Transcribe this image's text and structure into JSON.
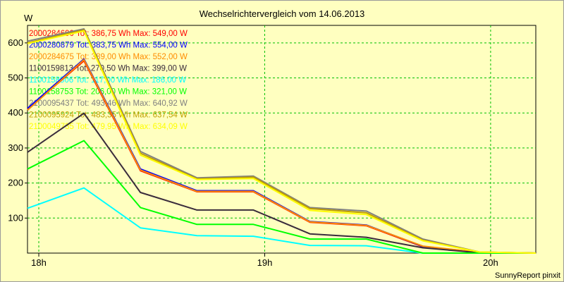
{
  "chart_data": {
    "type": "line",
    "title": "Wechselrichtervergleich vom 14.06.2013",
    "ylabel": "W",
    "xlabel": "",
    "x_ticks": [
      {
        "label": "18h",
        "t": 18.0
      },
      {
        "label": "19h",
        "t": 19.0
      },
      {
        "label": "20h",
        "t": 20.0
      }
    ],
    "xlim": [
      17.95,
      20.2
    ],
    "ylim": [
      0,
      650
    ],
    "y_ticks": [
      100,
      200,
      300,
      400,
      500,
      600
    ],
    "grid": true,
    "legend_position": "top-left",
    "x": [
      17.95,
      18.2,
      18.45,
      18.7,
      18.95,
      19.2,
      19.45,
      19.7,
      19.95,
      20.2
    ],
    "series": [
      {
        "name": "2000284690",
        "legend": "2000284690 Tot: 386,75 Wh Max: 549,00 W",
        "color": "#ff0000",
        "values": [
          410,
          549,
          235,
          175,
          175,
          88,
          78,
          18,
          2,
          0
        ]
      },
      {
        "name": "2000280879",
        "legend": "2000280879 Tot: 383,75 Wh Max: 554,00 W",
        "color": "#0000ff",
        "values": [
          413,
          554,
          240,
          178,
          178,
          90,
          80,
          19,
          2,
          0
        ]
      },
      {
        "name": "2000284675",
        "legend": "2000284675 Tot: 389,00 Wh Max: 552,00 W",
        "color": "#ff8c00",
        "values": [
          408,
          552,
          237,
          176,
          176,
          89,
          79,
          20,
          2,
          0
        ]
      },
      {
        "name": "1100159813",
        "legend": "1100159813 Tot: 270,50 Wh Max: 399,00 W",
        "color": "#3a2c3c",
        "values": [
          288,
          399,
          173,
          123,
          123,
          55,
          45,
          15,
          1,
          0
        ]
      },
      {
        "name": "1100158806",
        "legend": "1100158806 Tot: 117,00 Wh Max: 186,00 W",
        "color": "#00ffff",
        "values": [
          128,
          186,
          72,
          50,
          48,
          22,
          21,
          0,
          0,
          0
        ]
      },
      {
        "name": "1100158753",
        "legend": "1100158753 Tot: 206,00 Wh Max: 321,00 W",
        "color": "#00ff00",
        "values": [
          240,
          321,
          130,
          82,
          82,
          40,
          40,
          0,
          0,
          0
        ]
      },
      {
        "name": "2100095437",
        "legend": "2100095437 Tot: 493,46 Wh Max: 640,92 W",
        "color": "#808080",
        "values": [
          605,
          640,
          290,
          215,
          220,
          130,
          120,
          40,
          3,
          0
        ]
      },
      {
        "name": "2100095924",
        "legend": "2100095924 Tot: 483,35 Wh Max: 637,54 W",
        "color": "#c0a000",
        "values": [
          600,
          637,
          285,
          212,
          217,
          127,
          115,
          37,
          3,
          0
        ]
      },
      {
        "name": "2100049735",
        "legend": "2100049735 Tot: 479,95 Wh Max: 634,09 W",
        "color": "#ffff00",
        "values": [
          598,
          634,
          280,
          210,
          213,
          122,
          110,
          35,
          3,
          0
        ]
      }
    ]
  },
  "footer": "SunnyReport pinxit",
  "colors": {
    "background": "#ffffc0",
    "plot_background": "#ffffc0",
    "grid": "#00c000"
  }
}
